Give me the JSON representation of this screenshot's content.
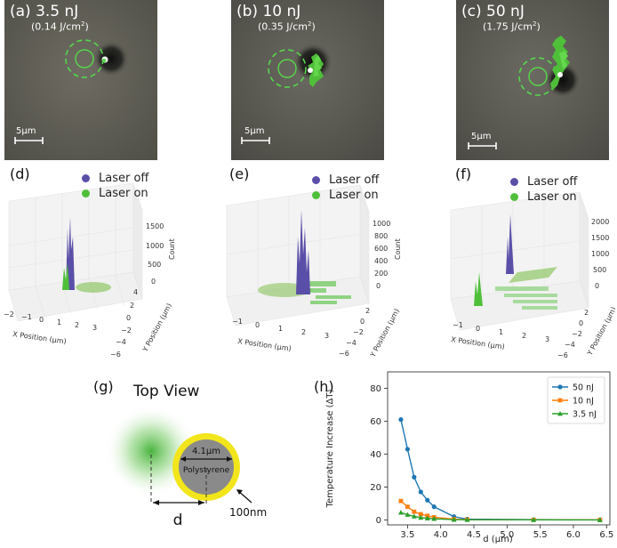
{
  "panels": {
    "a": {
      "label": "(a) 3.5 nJ",
      "fluence": "(0.14  J/cm",
      "sup": "2",
      "close": ")",
      "scalebar": "5μm"
    },
    "b": {
      "label": "(b) 10 nJ",
      "fluence": "(0.35 J/cm",
      "sup": "2",
      "close": ")",
      "scalebar": "5μm"
    },
    "c": {
      "label": "(c) 50 nJ",
      "fluence": "(1.75 J/cm",
      "sup": "2",
      "close": ")",
      "scalebar": "5μm"
    }
  },
  "histograms": {
    "d": {
      "label": "(d)",
      "zticks": [
        "0",
        "500",
        "1000",
        "1500"
      ],
      "xticks": [
        "−2",
        "−1",
        "0",
        "1",
        "2",
        "3"
      ],
      "yticks": [
        "4",
        "2",
        "0",
        "−2",
        "−4",
        "−6"
      ]
    },
    "e": {
      "label": "(e)",
      "zticks": [
        "0",
        "200",
        "400",
        "600",
        "800",
        "1000"
      ],
      "xticks": [
        "−1",
        "0",
        "1",
        "2",
        "3"
      ],
      "yticks": [
        "2",
        "0",
        "−2",
        "−4",
        "−6"
      ]
    },
    "f": {
      "label": "(f)",
      "zticks": [
        "0",
        "500",
        "1000",
        "1500",
        "2000"
      ],
      "xticks": [
        "−1",
        "0",
        "1",
        "2",
        "3"
      ],
      "yticks": [
        "2",
        "0",
        "−2",
        "−4",
        "−6"
      ]
    },
    "xlabel": "X Position (μm)",
    "ylabel": "Y Position (μm)",
    "zlabel": "Count",
    "legend_off": "Laser off",
    "legend_on": "Laser on",
    "color_off": "#5a4fa8",
    "color_on": "#4fbf3a"
  },
  "topview": {
    "label": "(g)",
    "title": "Top View",
    "diameter": "4.1μm",
    "material": "Polystyrene",
    "shell": "100nm",
    "distance": "d"
  },
  "chart_data": {
    "label": "(h)",
    "type": "line",
    "title": "",
    "xlabel": "d (μm)",
    "ylabel": "Temperature Increase (ΔT)",
    "xlim": [
      3.2,
      6.55
    ],
    "ylim": [
      -3,
      90
    ],
    "xticks": [
      3.5,
      4.0,
      4.5,
      5.0,
      5.5,
      6.0,
      6.5
    ],
    "yticks": [
      0,
      20,
      40,
      60,
      80
    ],
    "legend_position": "top-right",
    "series": [
      {
        "name": "50 nJ",
        "color": "#1f77b4",
        "marker": "circle",
        "x": [
          3.4,
          3.5,
          3.6,
          3.7,
          3.8,
          3.9,
          4.2,
          4.4,
          5.4,
          6.4
        ],
        "y": [
          61,
          43,
          26,
          17,
          12,
          8,
          2,
          0.5,
          0.2,
          0.1
        ]
      },
      {
        "name": "10 nJ",
        "color": "#ff7f0e",
        "marker": "square",
        "x": [
          3.4,
          3.5,
          3.6,
          3.7,
          3.8,
          3.9,
          4.2,
          4.4,
          5.4,
          6.4
        ],
        "y": [
          11.5,
          8,
          5,
          3.5,
          2.5,
          1.6,
          0.5,
          0.2,
          0.1,
          0.05
        ]
      },
      {
        "name": "3.5 nJ",
        "color": "#2ca02c",
        "marker": "triangle",
        "x": [
          3.4,
          3.5,
          3.6,
          3.7,
          3.8,
          3.9,
          4.2,
          4.4,
          5.4,
          6.4
        ],
        "y": [
          4.5,
          3.2,
          2.2,
          1.4,
          1.0,
          0.7,
          0.2,
          0.1,
          0.05,
          0.02
        ]
      }
    ]
  }
}
